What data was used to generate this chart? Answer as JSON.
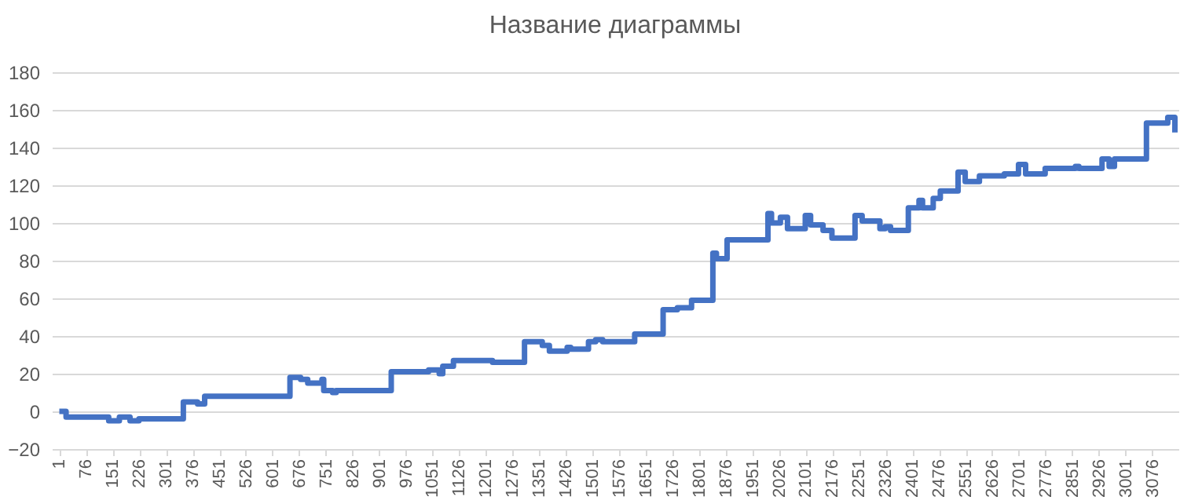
{
  "chart_data": {
    "type": "step",
    "title": "Название диаграммы",
    "x": [
      1,
      20,
      140,
      170,
      200,
      225,
      350,
      390,
      410,
      650,
      680,
      700,
      740,
      745,
      770,
      780,
      935,
      1040,
      1070,
      1080,
      1110,
      1220,
      1310,
      1360,
      1380,
      1430,
      1440,
      1490,
      1510,
      1530,
      1620,
      1700,
      1740,
      1780,
      1840,
      1850,
      1880,
      1995,
      2005,
      2030,
      2050,
      2100,
      2115,
      2150,
      2175,
      2240,
      2260,
      2310,
      2325,
      2340,
      2390,
      2420,
      2430,
      2460,
      2480,
      2530,
      2550,
      2590,
      2660,
      2700,
      2720,
      2775,
      2860,
      2870,
      2935,
      2955,
      2970,
      3060,
      3120,
      3140
    ],
    "series": [
      {
        "color": "#4472c4",
        "values": [
          0,
          -3,
          -5,
          -3,
          -5,
          -4,
          5,
          4,
          8,
          18,
          17,
          15,
          17,
          11,
          10,
          11,
          21,
          22,
          20,
          24,
          27,
          26,
          37,
          35,
          32,
          34,
          33,
          37,
          38,
          37,
          41,
          54,
          55,
          59,
          84,
          81,
          91,
          105,
          100,
          103,
          97,
          104,
          99,
          96,
          92,
          104,
          101,
          97,
          98,
          96,
          108,
          112,
          108,
          113,
          117,
          127,
          122,
          125,
          126,
          131,
          126,
          129,
          130,
          129,
          134,
          130,
          134,
          153,
          156,
          148
        ]
      }
    ],
    "xlim": [
      -20,
      3150
    ],
    "xticks": [
      1,
      76,
      151,
      226,
      301,
      376,
      451,
      526,
      601,
      676,
      751,
      826,
      901,
      976,
      1051,
      1126,
      1201,
      1276,
      1351,
      1426,
      1501,
      1576,
      1651,
      1726,
      1801,
      1876,
      1951,
      2026,
      2101,
      2176,
      2251,
      2326,
      2401,
      2476,
      2551,
      2626,
      2701,
      2776,
      2851,
      2926,
      3001,
      3076
    ],
    "ylim": [
      -20,
      180
    ],
    "yticks": [
      -20,
      0,
      20,
      40,
      60,
      80,
      100,
      120,
      140,
      160,
      180
    ],
    "grid": "y"
  }
}
